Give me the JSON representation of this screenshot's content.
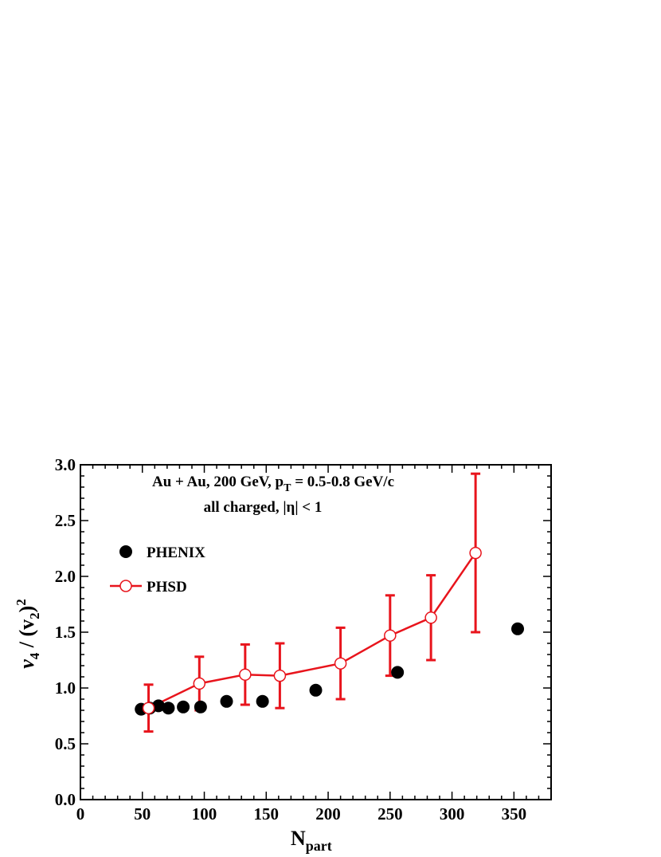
{
  "chart_data": {
    "type": "scatter",
    "title_line1": {
      "main": "Au + Au, 200 GeV, p",
      "sub": "T",
      "rest": " = 0.5-0.8 GeV/c"
    },
    "title_line2": "all charged, |η| < 1",
    "xlabel": {
      "main": "N",
      "sub": "part"
    },
    "ylabel": {
      "a": "v",
      "a_sub": "4",
      "b": " / (v",
      "b_sub": "2",
      "c": ")",
      "c_sup": "2"
    },
    "xlim": [
      0,
      380
    ],
    "ylim": [
      0,
      3.0
    ],
    "x_ticks": [
      "0",
      "50",
      "100",
      "150",
      "200",
      "250",
      "300",
      "350"
    ],
    "x_tick_values": [
      0,
      50,
      100,
      150,
      200,
      250,
      300,
      350
    ],
    "y_ticks": [
      "0.0",
      "0.5",
      "1.0",
      "1.5",
      "2.0",
      "2.5",
      "3.0"
    ],
    "y_tick_values": [
      0,
      0.5,
      1.0,
      1.5,
      2.0,
      2.5,
      3.0
    ],
    "legend_placement": "top-left",
    "grid": false,
    "series": [
      {
        "name": "PHENIX",
        "marker": "filled-circle",
        "color": "#000000",
        "x": [
          49,
          56,
          63,
          71,
          83,
          97,
          118,
          147,
          190,
          256,
          353
        ],
        "y": [
          0.81,
          0.82,
          0.84,
          0.82,
          0.83,
          0.83,
          0.88,
          0.88,
          0.98,
          1.14,
          1.53
        ]
      },
      {
        "name": "PHSD",
        "marker": "open-circle-line",
        "color": "#e8141c",
        "x": [
          55,
          96,
          133,
          161,
          210,
          250,
          283,
          319
        ],
        "y": [
          0.82,
          1.04,
          1.12,
          1.11,
          1.22,
          1.47,
          1.63,
          2.21
        ],
        "yerr": [
          0.21,
          0.24,
          0.27,
          0.29,
          0.32,
          0.36,
          0.38,
          0.71
        ]
      }
    ]
  }
}
